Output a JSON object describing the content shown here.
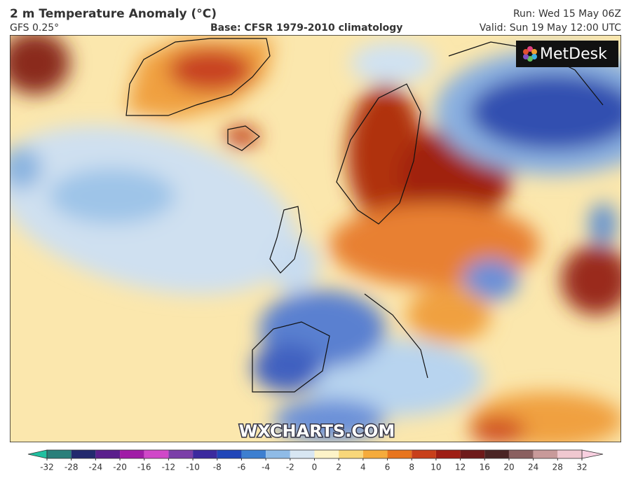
{
  "header": {
    "title": "2 m Temperature Anomaly (°C)",
    "model": "GFS 0.25°",
    "base": "Base: CFSR 1979-2010 climatology",
    "run": "Run: Wed 15 May 06Z",
    "valid": "Valid: Sun 19 May 12:00 UTC"
  },
  "logo": "MetDesk",
  "watermark": "WXCHARTS.COM",
  "legend": {
    "ticks": [
      -32,
      -28,
      -24,
      -20,
      -16,
      -12,
      -10,
      -8,
      -6,
      -4,
      -2,
      0,
      2,
      4,
      6,
      8,
      10,
      12,
      16,
      20,
      24,
      28,
      32
    ],
    "colors": [
      "#2a7f7a",
      "#232a6e",
      "#5a1f8c",
      "#a01ca6",
      "#d048c8",
      "#7b3fa8",
      "#3b2a9e",
      "#2046b8",
      "#3d7fd0",
      "#8fbbe6",
      "#d8e6f2",
      "#fdf3c8",
      "#f8d77a",
      "#f5ab3c",
      "#e8751e",
      "#c8401a",
      "#9e1e14",
      "#6e1a1a",
      "#4a2424",
      "#8a6060",
      "#c89a9a",
      "#f0c8d0"
    ],
    "under_color": "#20c0a0",
    "over_color": "#f8d0e0"
  }
}
